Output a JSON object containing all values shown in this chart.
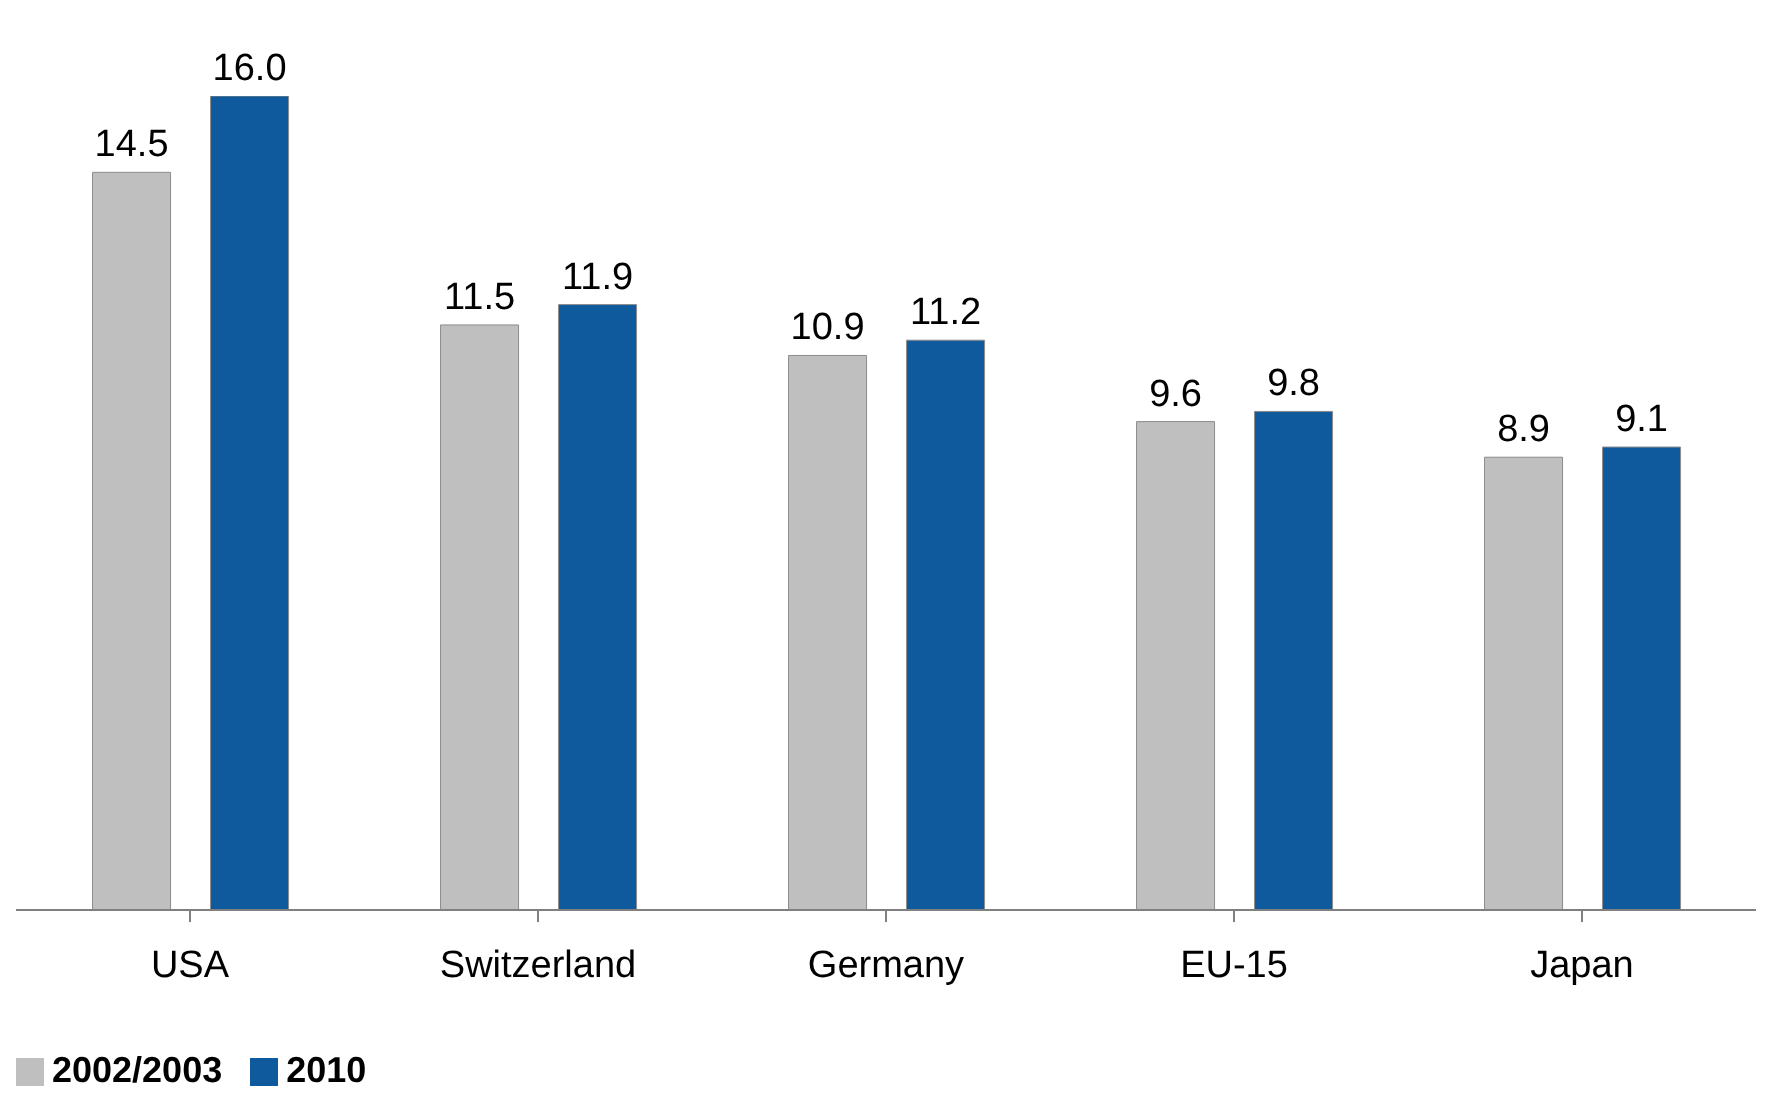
{
  "chart_data": {
    "type": "bar",
    "categories": [
      "USA",
      "Switzerland",
      "Germany",
      "EU-15",
      "Japan"
    ],
    "series": [
      {
        "name": "2002/2003",
        "color": "#bfbfbf",
        "values": [
          14.5,
          11.5,
          10.9,
          9.6,
          8.9
        ],
        "value_labels": [
          "14.5",
          "11.5",
          "10.9",
          "9.6",
          "8.9"
        ]
      },
      {
        "name": "2010",
        "color": "#0e5a9c",
        "values": [
          16.0,
          11.9,
          11.2,
          9.8,
          9.1
        ],
        "value_labels": [
          "16.0",
          "11.9",
          "11.2",
          "9.8",
          "9.1"
        ]
      }
    ],
    "ylim": [
      0,
      16
    ],
    "tick_labels": "x",
    "legend": "bottom left",
    "grid": false
  }
}
